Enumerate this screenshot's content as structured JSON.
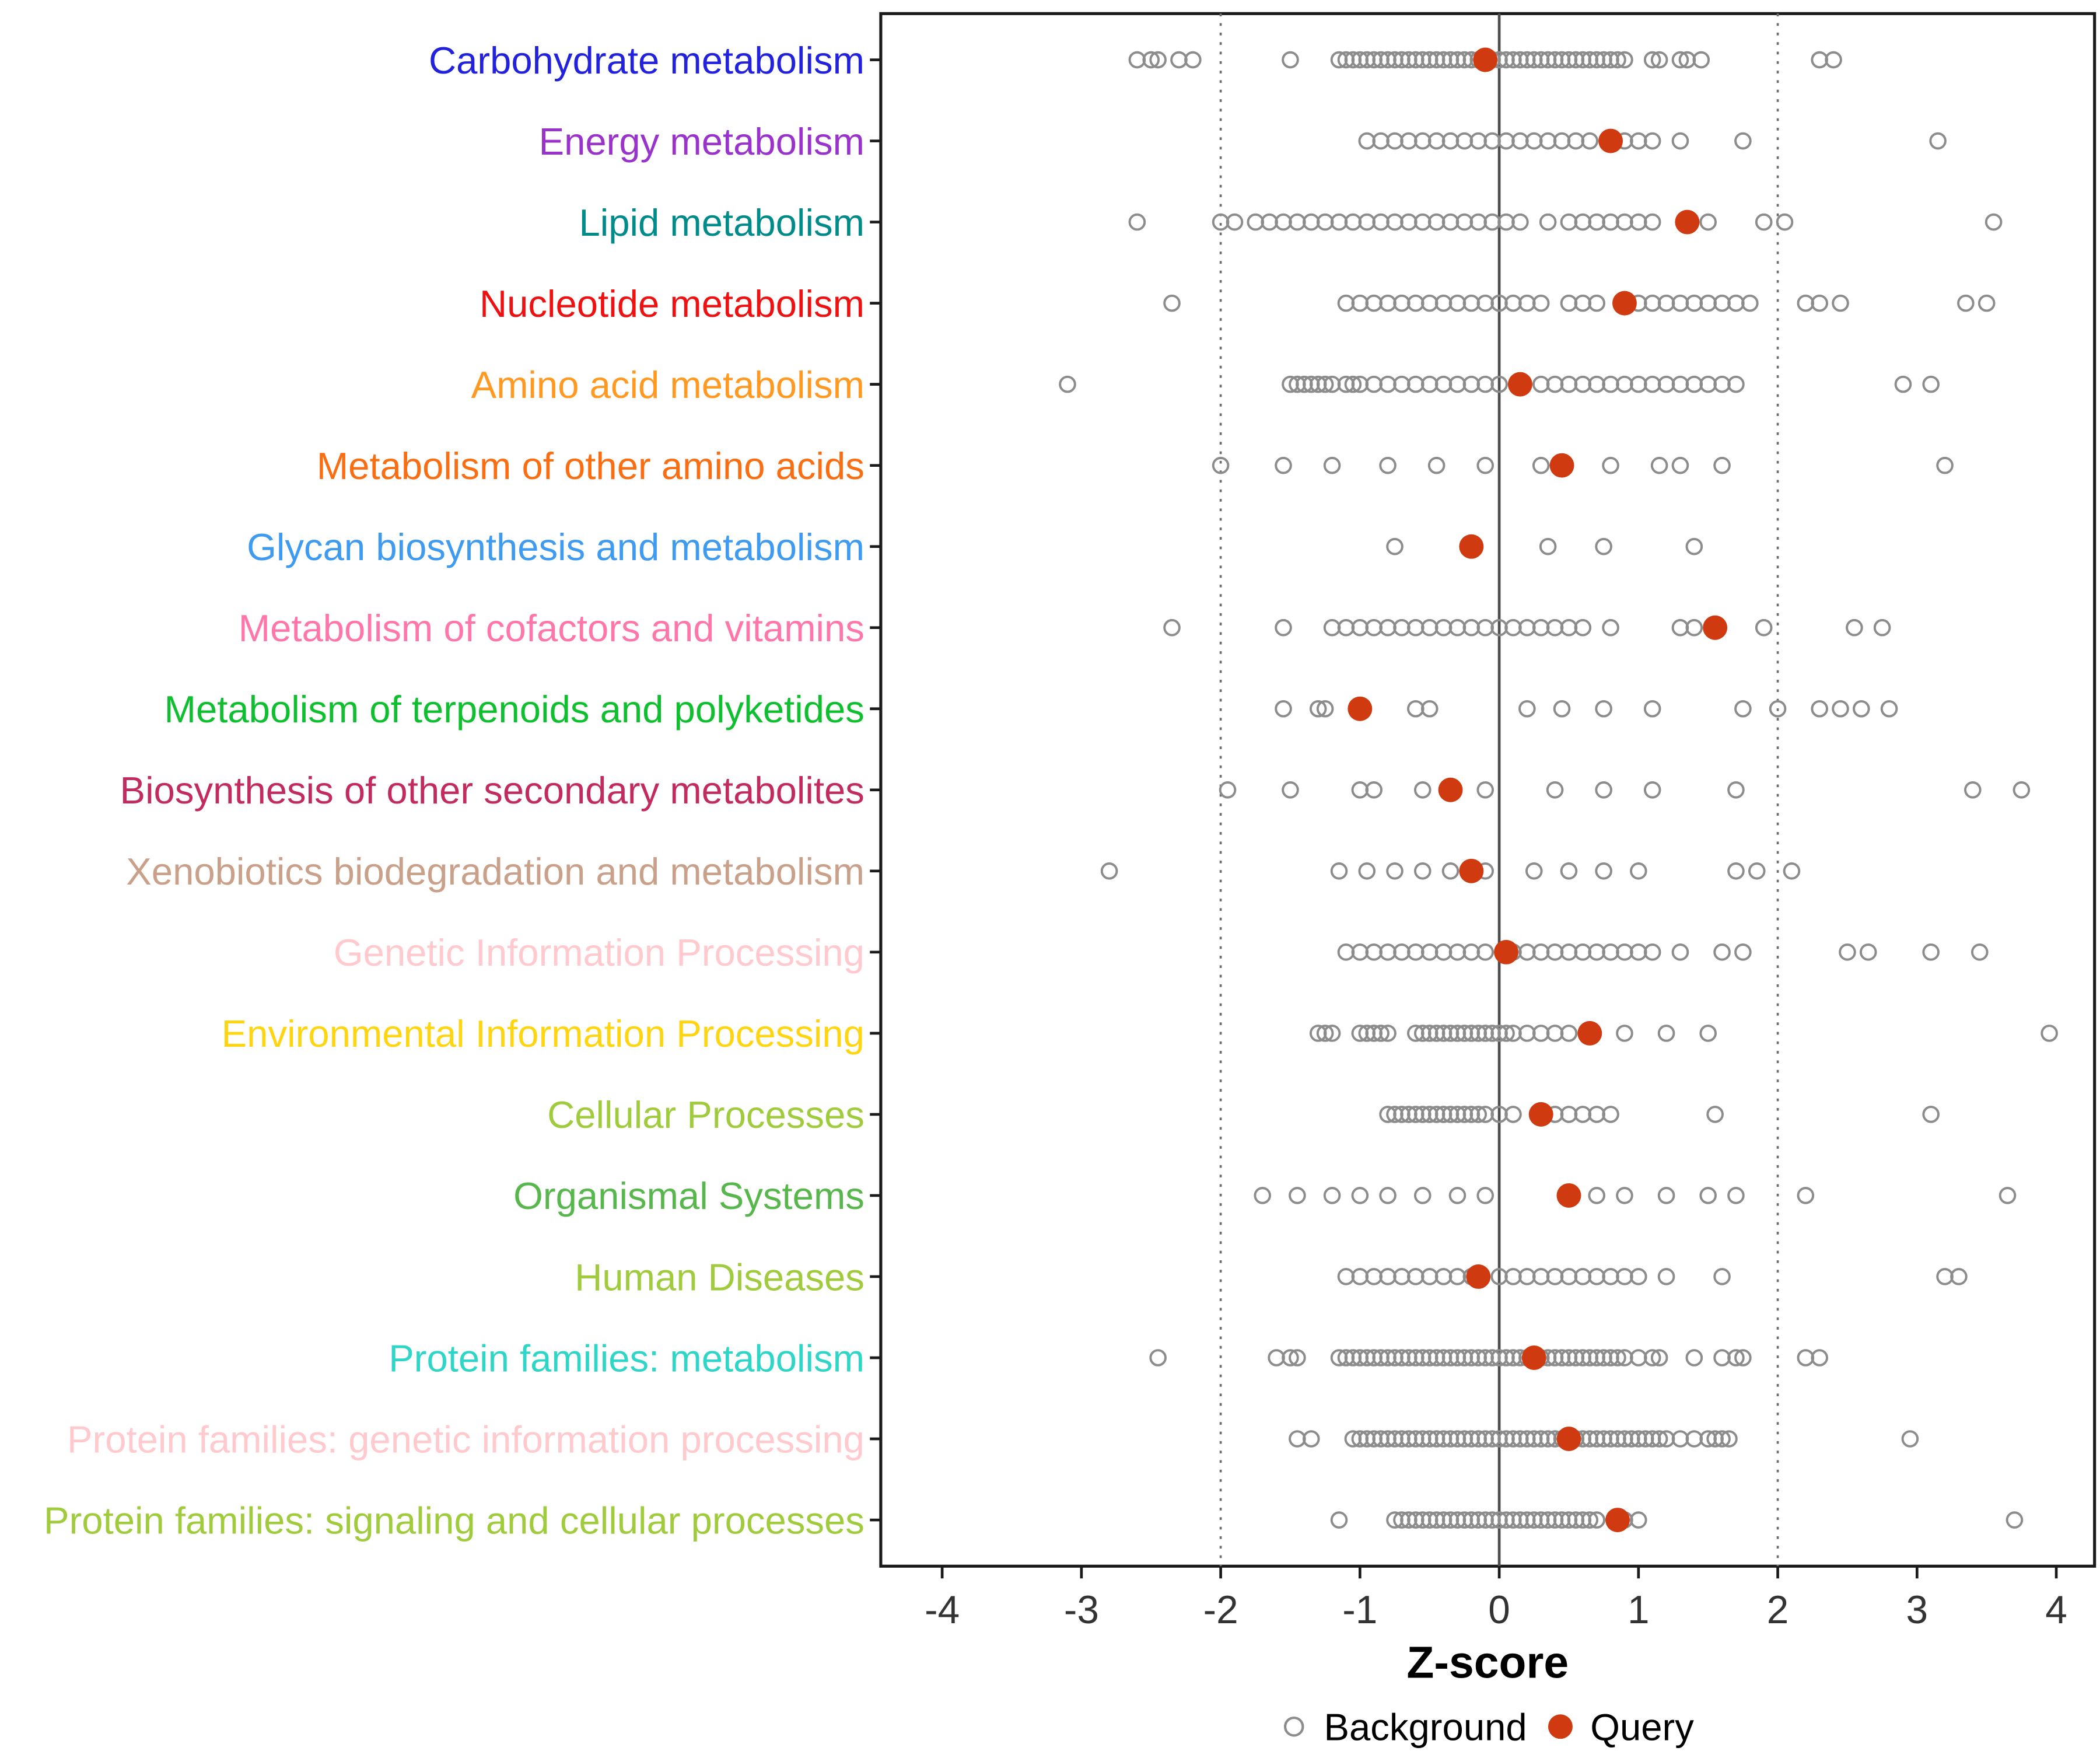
{
  "chart_data": {
    "type": "scatter",
    "title": "",
    "xlabel": "Z-score",
    "ylabel": "",
    "xlim": [
      -4.4,
      4.3
    ],
    "x_ticks": [
      -4,
      -3,
      -2,
      -1,
      0,
      1,
      2,
      3,
      4
    ],
    "grid": false,
    "reference_lines": {
      "solid": [
        0
      ],
      "dotted": [
        -2,
        2
      ]
    },
    "legend": [
      "Background",
      "Query"
    ],
    "legend_position": "bottom",
    "colors": {
      "background_point": "#8C8C8C",
      "query_point": "#D03A10",
      "axis_text": "#333333",
      "border": "#1A1A1A"
    },
    "categories": [
      {
        "label": "Carbohydrate metabolism",
        "color": "#2222DD",
        "query": -0.1,
        "background": [
          -2.6,
          -2.5,
          -2.45,
          -2.3,
          -2.2,
          -1.5,
          -1.15,
          -1.1,
          -1.05,
          -1.0,
          -0.95,
          -0.9,
          -0.85,
          -0.8,
          -0.75,
          -0.7,
          -0.65,
          -0.6,
          -0.55,
          -0.5,
          -0.45,
          -0.4,
          -0.35,
          -0.3,
          -0.25,
          -0.2,
          -0.15,
          -0.1,
          -0.05,
          0.0,
          0.05,
          0.1,
          0.15,
          0.2,
          0.25,
          0.3,
          0.35,
          0.4,
          0.45,
          0.5,
          0.55,
          0.6,
          0.65,
          0.7,
          0.75,
          0.8,
          0.85,
          0.9,
          1.1,
          1.15,
          1.3,
          1.35,
          1.45,
          2.3,
          2.4
        ]
      },
      {
        "label": "Energy metabolism",
        "color": "#9933CC",
        "query": 0.8,
        "background": [
          -0.95,
          -0.85,
          -0.75,
          -0.65,
          -0.55,
          -0.45,
          -0.35,
          -0.25,
          -0.15,
          -0.05,
          0.05,
          0.15,
          0.25,
          0.35,
          0.45,
          0.55,
          0.65,
          0.9,
          1.0,
          1.1,
          1.3,
          1.75,
          3.15
        ]
      },
      {
        "label": "Lipid metabolism",
        "color": "#008B8B",
        "query": 1.35,
        "background": [
          -2.6,
          -2.0,
          -1.9,
          -1.75,
          -1.65,
          -1.55,
          -1.45,
          -1.35,
          -1.25,
          -1.15,
          -1.05,
          -0.95,
          -0.85,
          -0.75,
          -0.65,
          -0.55,
          -0.45,
          -0.35,
          -0.25,
          -0.15,
          -0.05,
          0.05,
          0.15,
          0.35,
          0.5,
          0.6,
          0.7,
          0.8,
          0.9,
          1.0,
          1.1,
          1.5,
          1.9,
          2.05,
          3.55
        ]
      },
      {
        "label": "Nucleotide metabolism",
        "color": "#EE1111",
        "query": 0.9,
        "background": [
          -2.35,
          -1.1,
          -1.0,
          -0.9,
          -0.8,
          -0.7,
          -0.6,
          -0.5,
          -0.4,
          -0.3,
          -0.2,
          -0.1,
          0.0,
          0.1,
          0.2,
          0.3,
          0.5,
          0.6,
          0.7,
          1.0,
          1.1,
          1.2,
          1.3,
          1.4,
          1.5,
          1.6,
          1.7,
          1.8,
          2.2,
          2.3,
          2.45,
          3.35,
          3.5
        ]
      },
      {
        "label": "Amino acid metabolism",
        "color": "#FF9922",
        "query": 0.15,
        "background": [
          -3.1,
          -1.5,
          -1.45,
          -1.4,
          -1.35,
          -1.3,
          -1.25,
          -1.2,
          -1.1,
          -1.05,
          -1.0,
          -0.9,
          -0.8,
          -0.7,
          -0.6,
          -0.5,
          -0.4,
          -0.3,
          -0.2,
          -0.1,
          0.0,
          0.3,
          0.4,
          0.5,
          0.6,
          0.7,
          0.8,
          0.9,
          1.0,
          1.1,
          1.2,
          1.3,
          1.4,
          1.5,
          1.6,
          1.7,
          2.9,
          3.1
        ]
      },
      {
        "label": "Metabolism of other amino acids",
        "color": "#F96E12",
        "query": 0.45,
        "background": [
          -2.0,
          -1.55,
          -1.2,
          -0.8,
          -0.45,
          -0.1,
          0.3,
          0.8,
          1.15,
          1.3,
          1.6,
          3.2
        ]
      },
      {
        "label": "Glycan biosynthesis and metabolism",
        "color": "#3E9BF0",
        "query": -0.2,
        "background": [
          -0.75,
          0.35,
          0.75,
          1.4
        ]
      },
      {
        "label": "Metabolism of cofactors and vitamins",
        "color": "#FF77AA",
        "query": 1.55,
        "background": [
          -2.35,
          -1.55,
          -1.2,
          -1.1,
          -1.0,
          -0.9,
          -0.8,
          -0.7,
          -0.6,
          -0.5,
          -0.4,
          -0.3,
          -0.2,
          -0.1,
          0.0,
          0.1,
          0.2,
          0.3,
          0.4,
          0.5,
          0.6,
          0.8,
          1.3,
          1.4,
          1.9,
          2.55,
          2.75
        ]
      },
      {
        "label": "Metabolism of terpenoids and polyketides",
        "color": "#0FBF2F",
        "query": -1.0,
        "background": [
          -1.55,
          -1.3,
          -1.25,
          -0.6,
          -0.5,
          0.2,
          0.45,
          0.75,
          1.1,
          1.75,
          2.0,
          2.3,
          2.45,
          2.6,
          2.8
        ]
      },
      {
        "label": "Biosynthesis of other secondary metabolites",
        "color": "#C22B5E",
        "query": -0.35,
        "background": [
          -1.95,
          -1.5,
          -1.0,
          -0.9,
          -0.55,
          -0.1,
          0.4,
          0.75,
          1.1,
          1.7,
          3.4,
          3.75
        ]
      },
      {
        "label": "Xenobiotics biodegradation and metabolism",
        "color": "#C9A089",
        "query": -0.2,
        "background": [
          -2.8,
          -1.15,
          -0.95,
          -0.75,
          -0.55,
          -0.35,
          -0.1,
          0.25,
          0.5,
          0.75,
          1.0,
          1.7,
          1.85,
          2.1
        ]
      },
      {
        "label": "Genetic Information Processing",
        "color": "#FFC9CE",
        "query": 0.05,
        "background": [
          -1.1,
          -1.0,
          -0.9,
          -0.8,
          -0.7,
          -0.6,
          -0.5,
          -0.4,
          -0.3,
          -0.2,
          -0.1,
          0.1,
          0.2,
          0.3,
          0.4,
          0.5,
          0.6,
          0.7,
          0.8,
          0.9,
          1.0,
          1.1,
          1.3,
          1.6,
          1.75,
          2.5,
          2.65,
          3.1,
          3.45
        ]
      },
      {
        "label": "Environmental Information Processing",
        "color": "#FFD511",
        "query": 0.65,
        "background": [
          -1.3,
          -1.25,
          -1.2,
          -1.0,
          -0.95,
          -0.9,
          -0.85,
          -0.8,
          -0.6,
          -0.55,
          -0.5,
          -0.45,
          -0.4,
          -0.35,
          -0.3,
          -0.25,
          -0.2,
          -0.15,
          -0.1,
          -0.05,
          0.0,
          0.05,
          0.1,
          0.2,
          0.3,
          0.4,
          0.5,
          0.9,
          1.2,
          1.5,
          3.95
        ]
      },
      {
        "label": "Cellular Processes",
        "color": "#9FCB3D",
        "query": 0.3,
        "background": [
          -0.8,
          -0.75,
          -0.7,
          -0.65,
          -0.6,
          -0.55,
          -0.5,
          -0.45,
          -0.4,
          -0.35,
          -0.3,
          -0.25,
          -0.2,
          -0.15,
          -0.1,
          0.0,
          0.1,
          0.4,
          0.5,
          0.6,
          0.7,
          0.8,
          1.55,
          3.1
        ]
      },
      {
        "label": "Organismal Systems",
        "color": "#58B74C",
        "query": 0.5,
        "background": [
          -1.7,
          -1.45,
          -1.2,
          -1.0,
          -0.8,
          -0.55,
          -0.3,
          -0.1,
          0.7,
          0.9,
          1.2,
          1.5,
          1.7,
          2.2,
          3.65
        ]
      },
      {
        "label": "Human Diseases",
        "color": "#9FCB3D",
        "query": -0.15,
        "background": [
          -1.1,
          -1.0,
          -0.9,
          -0.8,
          -0.7,
          -0.6,
          -0.5,
          -0.4,
          -0.3,
          -0.2,
          0.0,
          0.1,
          0.2,
          0.3,
          0.4,
          0.5,
          0.6,
          0.7,
          0.8,
          0.9,
          1.0,
          1.2,
          1.6,
          3.2,
          3.3
        ]
      },
      {
        "label": "Protein families: metabolism",
        "color": "#2FD6C8",
        "query": 0.25,
        "background": [
          -2.45,
          -1.6,
          -1.5,
          -1.45,
          -1.15,
          -1.1,
          -1.05,
          -1.0,
          -0.95,
          -0.9,
          -0.85,
          -0.8,
          -0.75,
          -0.7,
          -0.65,
          -0.6,
          -0.55,
          -0.5,
          -0.45,
          -0.4,
          -0.35,
          -0.3,
          -0.25,
          -0.2,
          -0.15,
          -0.1,
          -0.05,
          0.0,
          0.05,
          0.1,
          0.15,
          0.2,
          0.25,
          0.3,
          0.35,
          0.4,
          0.45,
          0.5,
          0.55,
          0.6,
          0.65,
          0.7,
          0.75,
          0.8,
          0.85,
          0.9,
          1.0,
          1.1,
          1.15,
          1.4,
          1.6,
          1.7,
          1.75,
          2.2,
          2.3
        ]
      },
      {
        "label": "Protein families: genetic information processing",
        "color": "#FFC9CE",
        "query": 0.5,
        "background": [
          -1.45,
          -1.35,
          -1.05,
          -1.0,
          -0.95,
          -0.9,
          -0.85,
          -0.8,
          -0.75,
          -0.7,
          -0.65,
          -0.6,
          -0.55,
          -0.5,
          -0.45,
          -0.4,
          -0.35,
          -0.3,
          -0.25,
          -0.2,
          -0.15,
          -0.1,
          -0.05,
          0.0,
          0.05,
          0.1,
          0.15,
          0.2,
          0.25,
          0.3,
          0.35,
          0.4,
          0.45,
          0.5,
          0.55,
          0.6,
          0.65,
          0.7,
          0.75,
          0.8,
          0.85,
          0.9,
          0.95,
          1.0,
          1.05,
          1.1,
          1.15,
          1.2,
          1.3,
          1.4,
          1.5,
          1.55,
          1.6,
          1.65,
          2.95
        ]
      },
      {
        "label": "Protein families: signaling and cellular processes",
        "color": "#9FCB3D",
        "query": 0.85,
        "background": [
          -1.15,
          -0.75,
          -0.7,
          -0.65,
          -0.6,
          -0.55,
          -0.5,
          -0.45,
          -0.4,
          -0.35,
          -0.3,
          -0.25,
          -0.2,
          -0.15,
          -0.1,
          -0.05,
          0.0,
          0.05,
          0.1,
          0.15,
          0.2,
          0.25,
          0.3,
          0.35,
          0.4,
          0.45,
          0.5,
          0.55,
          0.6,
          0.65,
          0.7,
          0.9,
          1.0,
          3.7
        ]
      }
    ]
  }
}
